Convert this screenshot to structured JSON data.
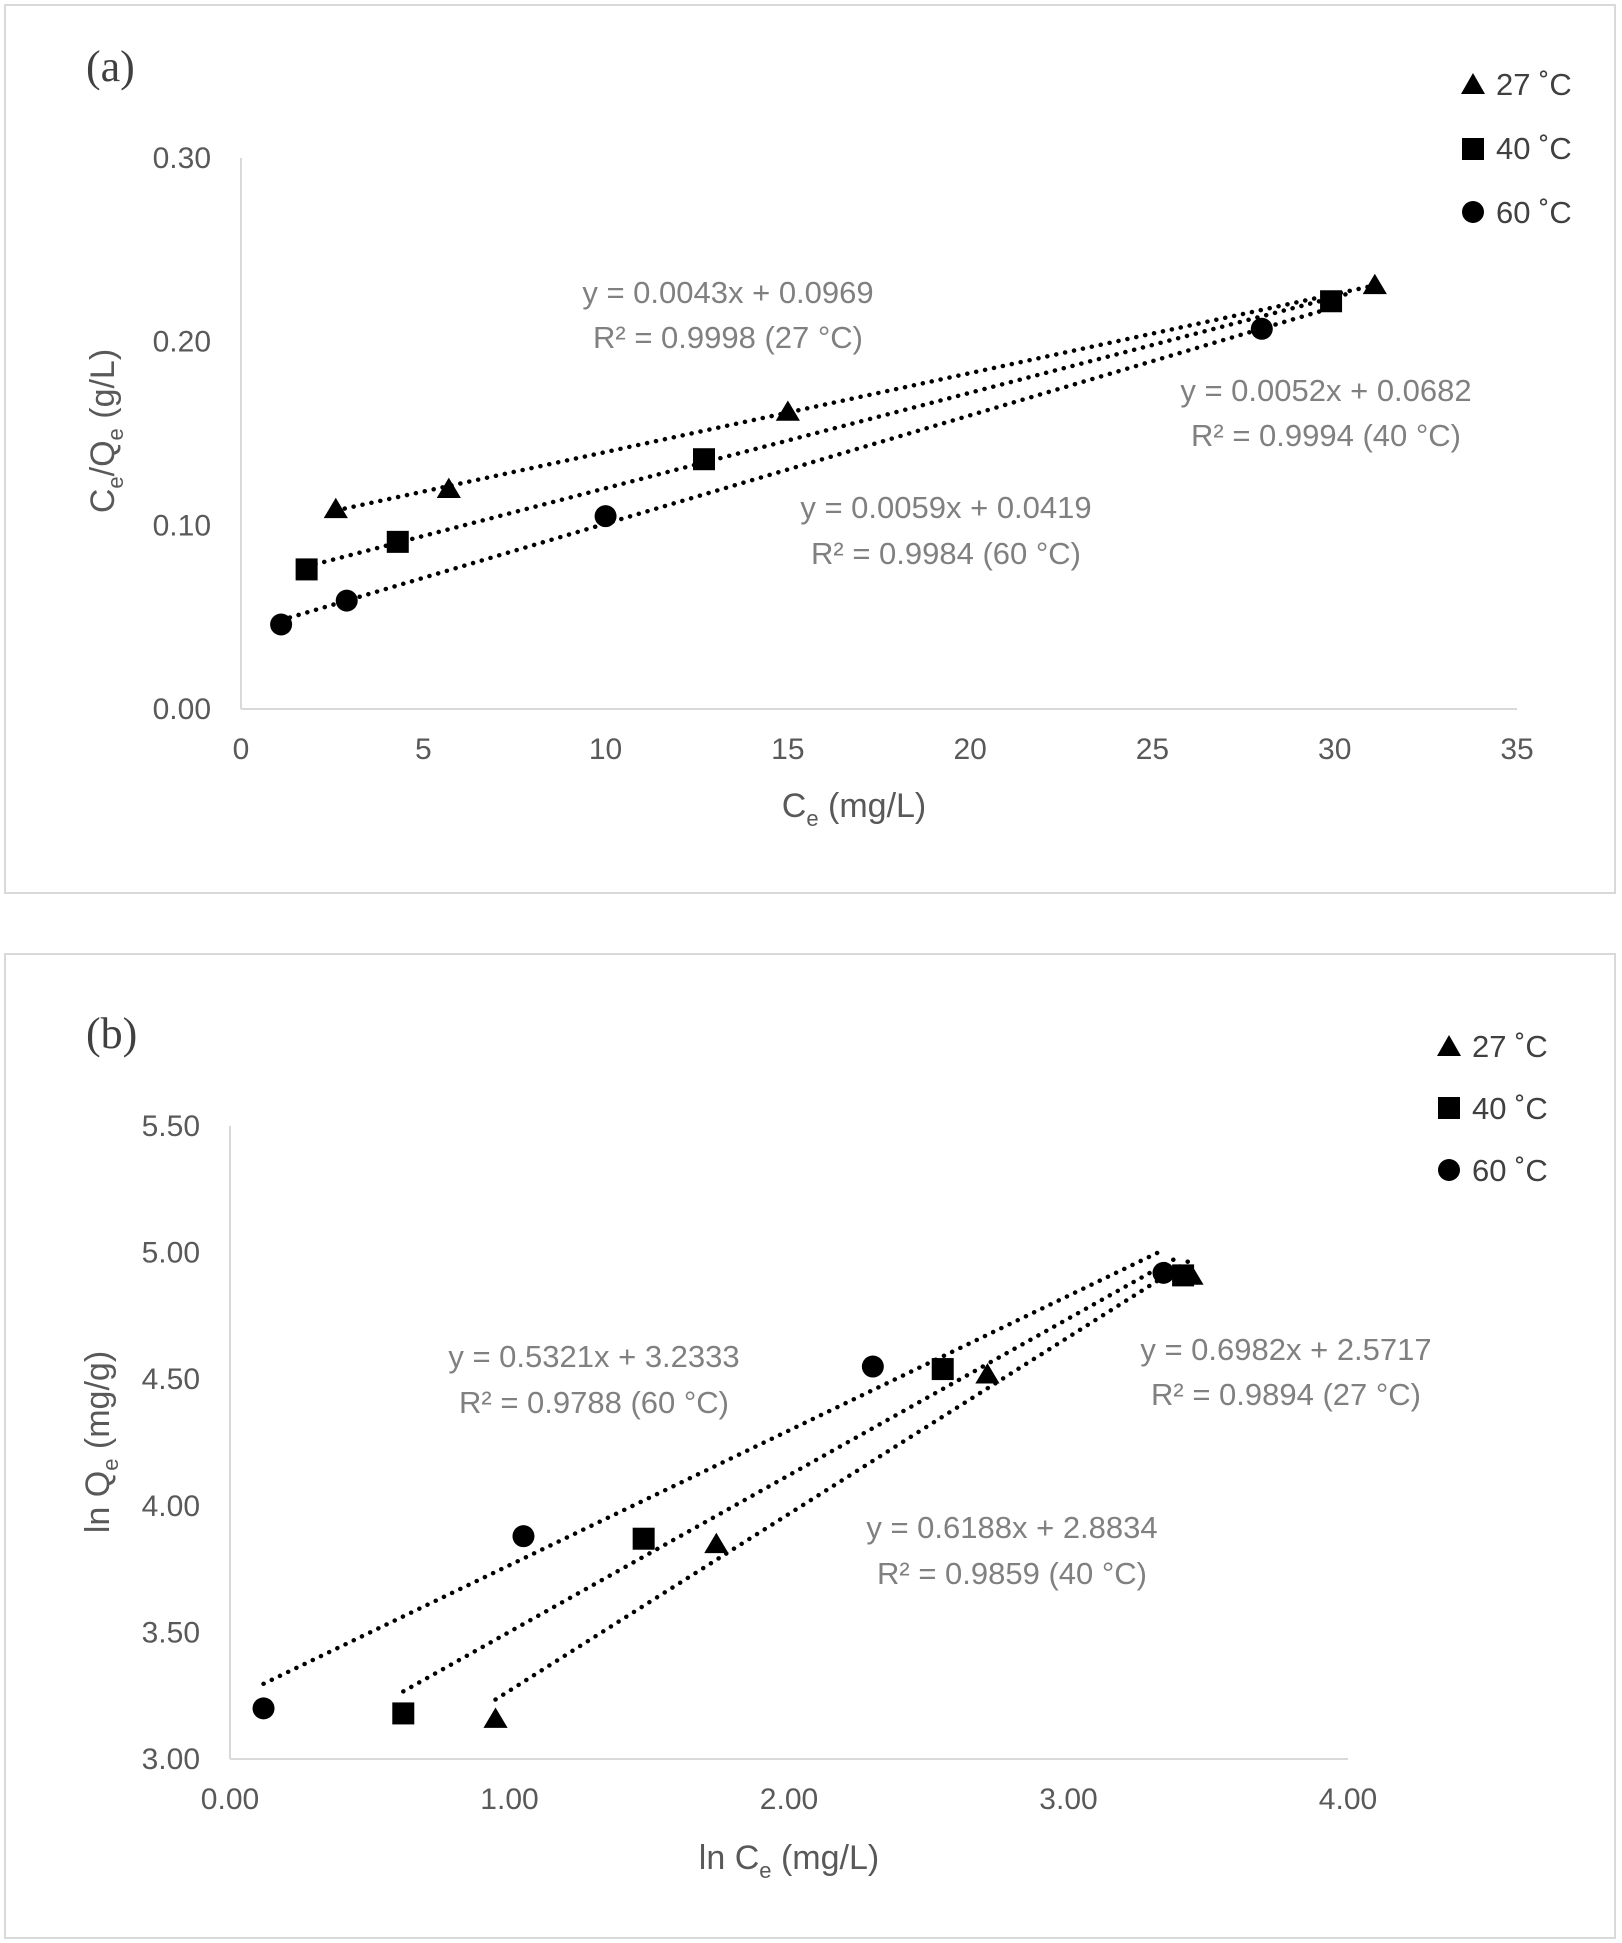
{
  "chart_data": [
    {
      "type": "scatter",
      "panel": "(a)",
      "xlabel": "C",
      "xlabel_sub": "e",
      "xlabel_suffix": " (mg/L)",
      "ylabel_parts": [
        "C",
        "e",
        "/Q",
        "e",
        " (g/L)"
      ],
      "xlim": [
        0,
        35
      ],
      "ylim": [
        0,
        0.3
      ],
      "xticks": [
        0,
        5,
        10,
        15,
        20,
        25,
        30,
        35
      ],
      "xtick_labels": [
        "0",
        "5",
        "10",
        "15",
        "20",
        "25",
        "30",
        "35"
      ],
      "yticks": [
        0,
        0.1,
        0.2,
        0.3
      ],
      "ytick_labels": [
        "0.00",
        "0.10",
        "0.20",
        "0.30"
      ],
      "legend": [
        "27 ˚C",
        "40 ˚C",
        "60 ˚C"
      ],
      "series": [
        {
          "name": "27 ˚C",
          "marker": "triangle",
          "x": [
            2.6,
            5.7,
            15.0,
            31.1
          ],
          "y": [
            0.109,
            0.12,
            0.162,
            0.231
          ],
          "trend": {
            "slope": 0.0043,
            "intercept": 0.0969,
            "x": [
              2.6,
              31.1
            ]
          },
          "equation": "y = 0.0043x + 0.0969",
          "r2": "R² = 0.9998 (27 °C)"
        },
        {
          "name": "40 ˚C",
          "marker": "square",
          "x": [
            1.8,
            4.3,
            12.7,
            29.9
          ],
          "y": [
            0.076,
            0.091,
            0.136,
            0.222
          ],
          "trend": {
            "slope": 0.0052,
            "intercept": 0.0682,
            "x": [
              1.8,
              30.5
            ]
          },
          "equation": "y = 0.0052x + 0.0682",
          "r2": "R² = 0.9994 (40 °C)"
        },
        {
          "name": "60 ˚C",
          "marker": "circle",
          "x": [
            1.1,
            2.9,
            10.0,
            28.0
          ],
          "y": [
            0.046,
            0.059,
            0.105,
            0.207
          ],
          "trend": {
            "slope": 0.0059,
            "intercept": 0.0419,
            "x": [
              1.1,
              29.8
            ]
          },
          "equation": "y = 0.0059x + 0.0419",
          "r2": "R² = 0.9984 (60 °C)"
        }
      ]
    },
    {
      "type": "scatter",
      "panel": "(b)",
      "xlabel": "ln C",
      "xlabel_sub": "e",
      "xlabel_suffix": " (mg/L)",
      "ylabel_parts": [
        "ln Q",
        "e",
        " (mg/g)"
      ],
      "xlim": [
        0,
        4
      ],
      "ylim": [
        3,
        5.5
      ],
      "xticks": [
        0,
        1,
        2,
        3,
        4
      ],
      "xtick_labels": [
        "0.00",
        "1.00",
        "2.00",
        "3.00",
        "4.00"
      ],
      "yticks": [
        3,
        3.5,
        4,
        4.5,
        5,
        5.5
      ],
      "ytick_labels": [
        "3.00",
        "3.50",
        "4.00",
        "4.50",
        "5.00",
        "5.50"
      ],
      "legend": [
        "27 ˚C",
        "40 ˚C",
        "60 ˚C"
      ],
      "series": [
        {
          "name": "27 ˚C",
          "marker": "triangle",
          "x": [
            0.95,
            1.74,
            2.71,
            3.44
          ],
          "y": [
            3.16,
            3.85,
            4.52,
            4.91
          ],
          "trend": {
            "slope": 0.6982,
            "intercept": 2.5717,
            "x": [
              0.95,
              3.43
            ]
          },
          "equation": "y = 0.6982x + 2.5717",
          "r2": "R² = 0.9894 (27 °C)"
        },
        {
          "name": "40 ˚C",
          "marker": "square",
          "x": [
            0.62,
            1.48,
            2.55,
            3.41
          ],
          "y": [
            3.18,
            3.87,
            4.54,
            4.91
          ],
          "trend": {
            "slope": 0.6188,
            "intercept": 2.8834,
            "x": [
              0.62,
              3.4
            ]
          },
          "equation": "y = 0.6188x + 2.8834",
          "r2": "R² = 0.9859 (40 °C)"
        },
        {
          "name": "60 ˚C",
          "marker": "circle",
          "x": [
            0.12,
            1.05,
            2.3,
            3.34
          ],
          "y": [
            3.2,
            3.88,
            4.55,
            4.92
          ],
          "trend": {
            "slope": 0.5321,
            "intercept": 3.2333,
            "x": [
              0.12,
              3.34
            ]
          },
          "equation": "y = 0.5321x + 3.2333",
          "r2": "R² = 0.9788 (60 °C)"
        }
      ]
    }
  ]
}
